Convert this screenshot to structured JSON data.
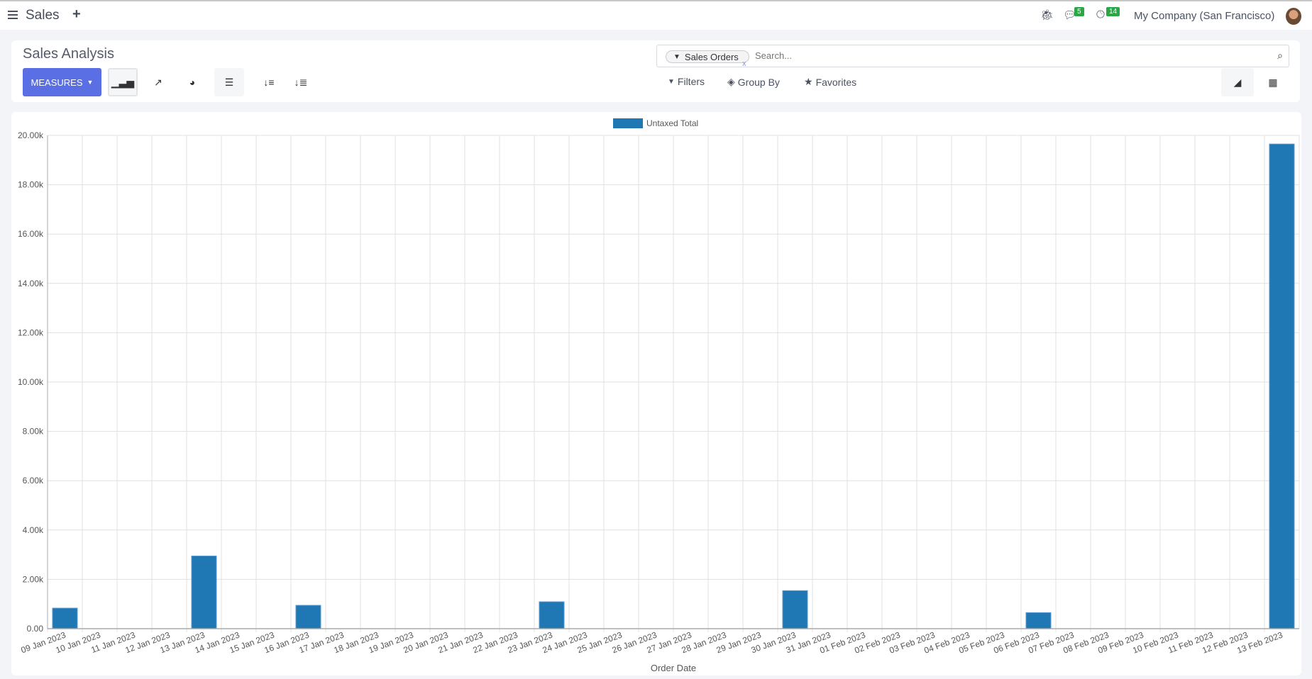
{
  "navbar": {
    "app_name": "Sales",
    "messages_count": "5",
    "activities_count": "14",
    "company": "My Company (San Francisco)"
  },
  "control_panel": {
    "title": "Sales Analysis",
    "measures_label": "MEASURES",
    "search": {
      "facet_label": "Sales Orders",
      "facet_remove": "x",
      "placeholder": "Search..."
    },
    "filters_label": "Filters",
    "group_by_label": "Group By",
    "favorites_label": "Favorites"
  },
  "colors": {
    "bar": "#1f77b4",
    "accent": "#5a6fe3",
    "badge": "#28a745"
  },
  "chart_data": {
    "type": "bar",
    "title": "",
    "xlabel": "Order Date",
    "ylabel": "",
    "legend": {
      "entries": [
        "Untaxed Total"
      ],
      "placement": "top-center"
    },
    "grid": true,
    "ylim": [
      0,
      20000
    ],
    "yticks": [
      "0.00",
      "2.00k",
      "4.00k",
      "6.00k",
      "8.00k",
      "10.00k",
      "12.00k",
      "14.00k",
      "16.00k",
      "18.00k",
      "20.00k"
    ],
    "categories": [
      "09 Jan 2023",
      "10 Jan 2023",
      "11 Jan 2023",
      "12 Jan 2023",
      "13 Jan 2023",
      "14 Jan 2023",
      "15 Jan 2023",
      "16 Jan 2023",
      "17 Jan 2023",
      "18 Jan 2023",
      "19 Jan 2023",
      "20 Jan 2023",
      "21 Jan 2023",
      "22 Jan 2023",
      "23 Jan 2023",
      "24 Jan 2023",
      "25 Jan 2023",
      "26 Jan 2023",
      "27 Jan 2023",
      "28 Jan 2023",
      "29 Jan 2023",
      "30 Jan 2023",
      "31 Jan 2023",
      "01 Feb 2023",
      "02 Feb 2023",
      "03 Feb 2023",
      "04 Feb 2023",
      "05 Feb 2023",
      "06 Feb 2023",
      "07 Feb 2023",
      "08 Feb 2023",
      "09 Feb 2023",
      "10 Feb 2023",
      "11 Feb 2023",
      "12 Feb 2023",
      "13 Feb 2023"
    ],
    "series": [
      {
        "name": "Untaxed Total",
        "values": [
          833,
          0,
          0,
          0,
          2947,
          0,
          0,
          947,
          0,
          0,
          0,
          0,
          0,
          0,
          1091,
          0,
          0,
          0,
          0,
          0,
          0,
          1541,
          0,
          0,
          0,
          0,
          0,
          0,
          651,
          0,
          0,
          0,
          0,
          0,
          0,
          19650
        ]
      }
    ]
  }
}
